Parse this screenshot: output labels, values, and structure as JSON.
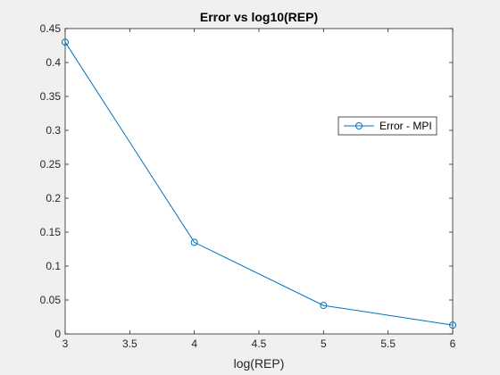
{
  "chart_data": {
    "type": "line",
    "title": "Error vs log10(REP)",
    "xlabel": "log(REP)",
    "ylabel": "",
    "xlim": [
      3,
      6
    ],
    "ylim": [
      0,
      0.45
    ],
    "xticks": [
      3,
      3.5,
      4,
      4.5,
      5,
      5.5,
      6
    ],
    "xtick_labels": [
      "3",
      "3.5",
      "4",
      "4.5",
      "5",
      "5.5",
      "6"
    ],
    "yticks": [
      0,
      0.05,
      0.1,
      0.15,
      0.2,
      0.25,
      0.3,
      0.35,
      0.4,
      0.45
    ],
    "ytick_labels": [
      "0",
      "0.05",
      "0.1",
      "0.15",
      "0.2",
      "0.25",
      "0.3",
      "0.35",
      "0.4",
      "0.45"
    ],
    "grid": false,
    "legend_position": "right",
    "series": [
      {
        "name": "Error - MPI",
        "color": "#0072BD",
        "marker": "circle",
        "x": [
          3,
          4,
          5,
          6
        ],
        "y": [
          0.43,
          0.135,
          0.042,
          0.013
        ]
      }
    ]
  }
}
